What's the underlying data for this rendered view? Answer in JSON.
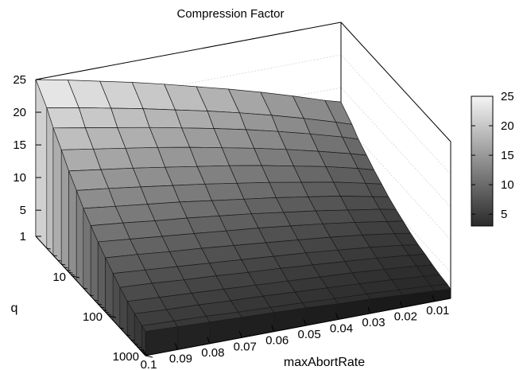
{
  "chart_data": {
    "type": "surface",
    "title": "Compression Factor",
    "xlabel": "maxAbortRate",
    "ylabel": "q",
    "zlabel": "",
    "x_axis": {
      "ticks": [
        "0.1",
        "0.09",
        "0.08",
        "0.07",
        "0.06",
        "0.05",
        "0.04",
        "0.03",
        "0.02",
        "0.01"
      ],
      "range": [
        0.1,
        0.005
      ]
    },
    "y_axis": {
      "scale": "log",
      "ticks": [
        "1000",
        "100",
        "10"
      ],
      "range": [
        1000,
        1
      ]
    },
    "z_axis": {
      "ticks": [
        "1",
        "5",
        "10",
        "15",
        "20",
        "25"
      ],
      "range": [
        1,
        25
      ]
    },
    "colorbar": {
      "ticks": [
        "5",
        "10",
        "15",
        "20",
        "25"
      ],
      "range": [
        3,
        25
      ],
      "colors": [
        "#2a2a2a",
        "#f5f5f5"
      ]
    },
    "surface": {
      "q": [
        1,
        2,
        3,
        5,
        8,
        13,
        20,
        32,
        50,
        80,
        130,
        200,
        320,
        500,
        800,
        1000
      ],
      "maxAbortRate": [
        0.1,
        0.09,
        0.08,
        0.07,
        0.06,
        0.05,
        0.04,
        0.03,
        0.02,
        0.01,
        0.005
      ],
      "z": [
        [
          25.0,
          24.0,
          22.9,
          21.8,
          20.6,
          19.3,
          18.0,
          16.6,
          15.1,
          13.5,
          12.8
        ],
        [
          22.5,
          21.6,
          20.6,
          19.6,
          18.5,
          17.4,
          16.2,
          14.9,
          13.5,
          12.0,
          11.2
        ],
        [
          20.5,
          19.6,
          18.7,
          17.8,
          16.8,
          15.8,
          14.7,
          13.5,
          12.2,
          10.8,
          10.0
        ],
        [
          18.5,
          17.7,
          16.9,
          16.1,
          15.2,
          14.2,
          13.2,
          12.1,
          10.9,
          9.6,
          8.9
        ],
        [
          16.5,
          15.8,
          15.1,
          14.3,
          13.5,
          12.7,
          11.8,
          10.8,
          9.8,
          8.6,
          7.9
        ],
        [
          14.8,
          14.2,
          13.5,
          12.8,
          12.1,
          11.3,
          10.5,
          9.6,
          8.7,
          7.6,
          7.0
        ],
        [
          13.2,
          12.6,
          12.0,
          11.4,
          10.7,
          10.0,
          9.3,
          8.5,
          7.7,
          6.7,
          6.2
        ],
        [
          11.8,
          11.3,
          10.7,
          10.2,
          9.6,
          9.0,
          8.3,
          7.6,
          6.8,
          6.0,
          5.5
        ],
        [
          10.5,
          10.0,
          9.5,
          9.0,
          8.5,
          8.0,
          7.4,
          6.8,
          6.1,
          5.3,
          4.9
        ],
        [
          9.3,
          8.9,
          8.4,
          8.0,
          7.5,
          7.0,
          6.5,
          6.0,
          5.4,
          4.7,
          4.3
        ],
        [
          8.2,
          7.8,
          7.4,
          7.0,
          6.6,
          6.2,
          5.8,
          5.3,
          4.8,
          4.2,
          3.8
        ],
        [
          7.2,
          6.9,
          6.5,
          6.2,
          5.8,
          5.5,
          5.1,
          4.7,
          4.3,
          3.8,
          3.5
        ],
        [
          6.3,
          6.0,
          5.7,
          5.4,
          5.1,
          4.8,
          4.5,
          4.2,
          3.8,
          3.4,
          3.1
        ],
        [
          5.6,
          5.3,
          5.1,
          4.8,
          4.6,
          4.3,
          4.0,
          3.7,
          3.4,
          3.0,
          2.8
        ],
        [
          5.0,
          4.8,
          4.6,
          4.3,
          4.1,
          3.9,
          3.6,
          3.4,
          3.1,
          2.8,
          2.6
        ],
        [
          4.7,
          4.5,
          4.3,
          4.1,
          3.9,
          3.7,
          3.4,
          3.2,
          2.9,
          2.6,
          2.4
        ]
      ]
    },
    "grid": false,
    "colorbar_position": "right"
  }
}
